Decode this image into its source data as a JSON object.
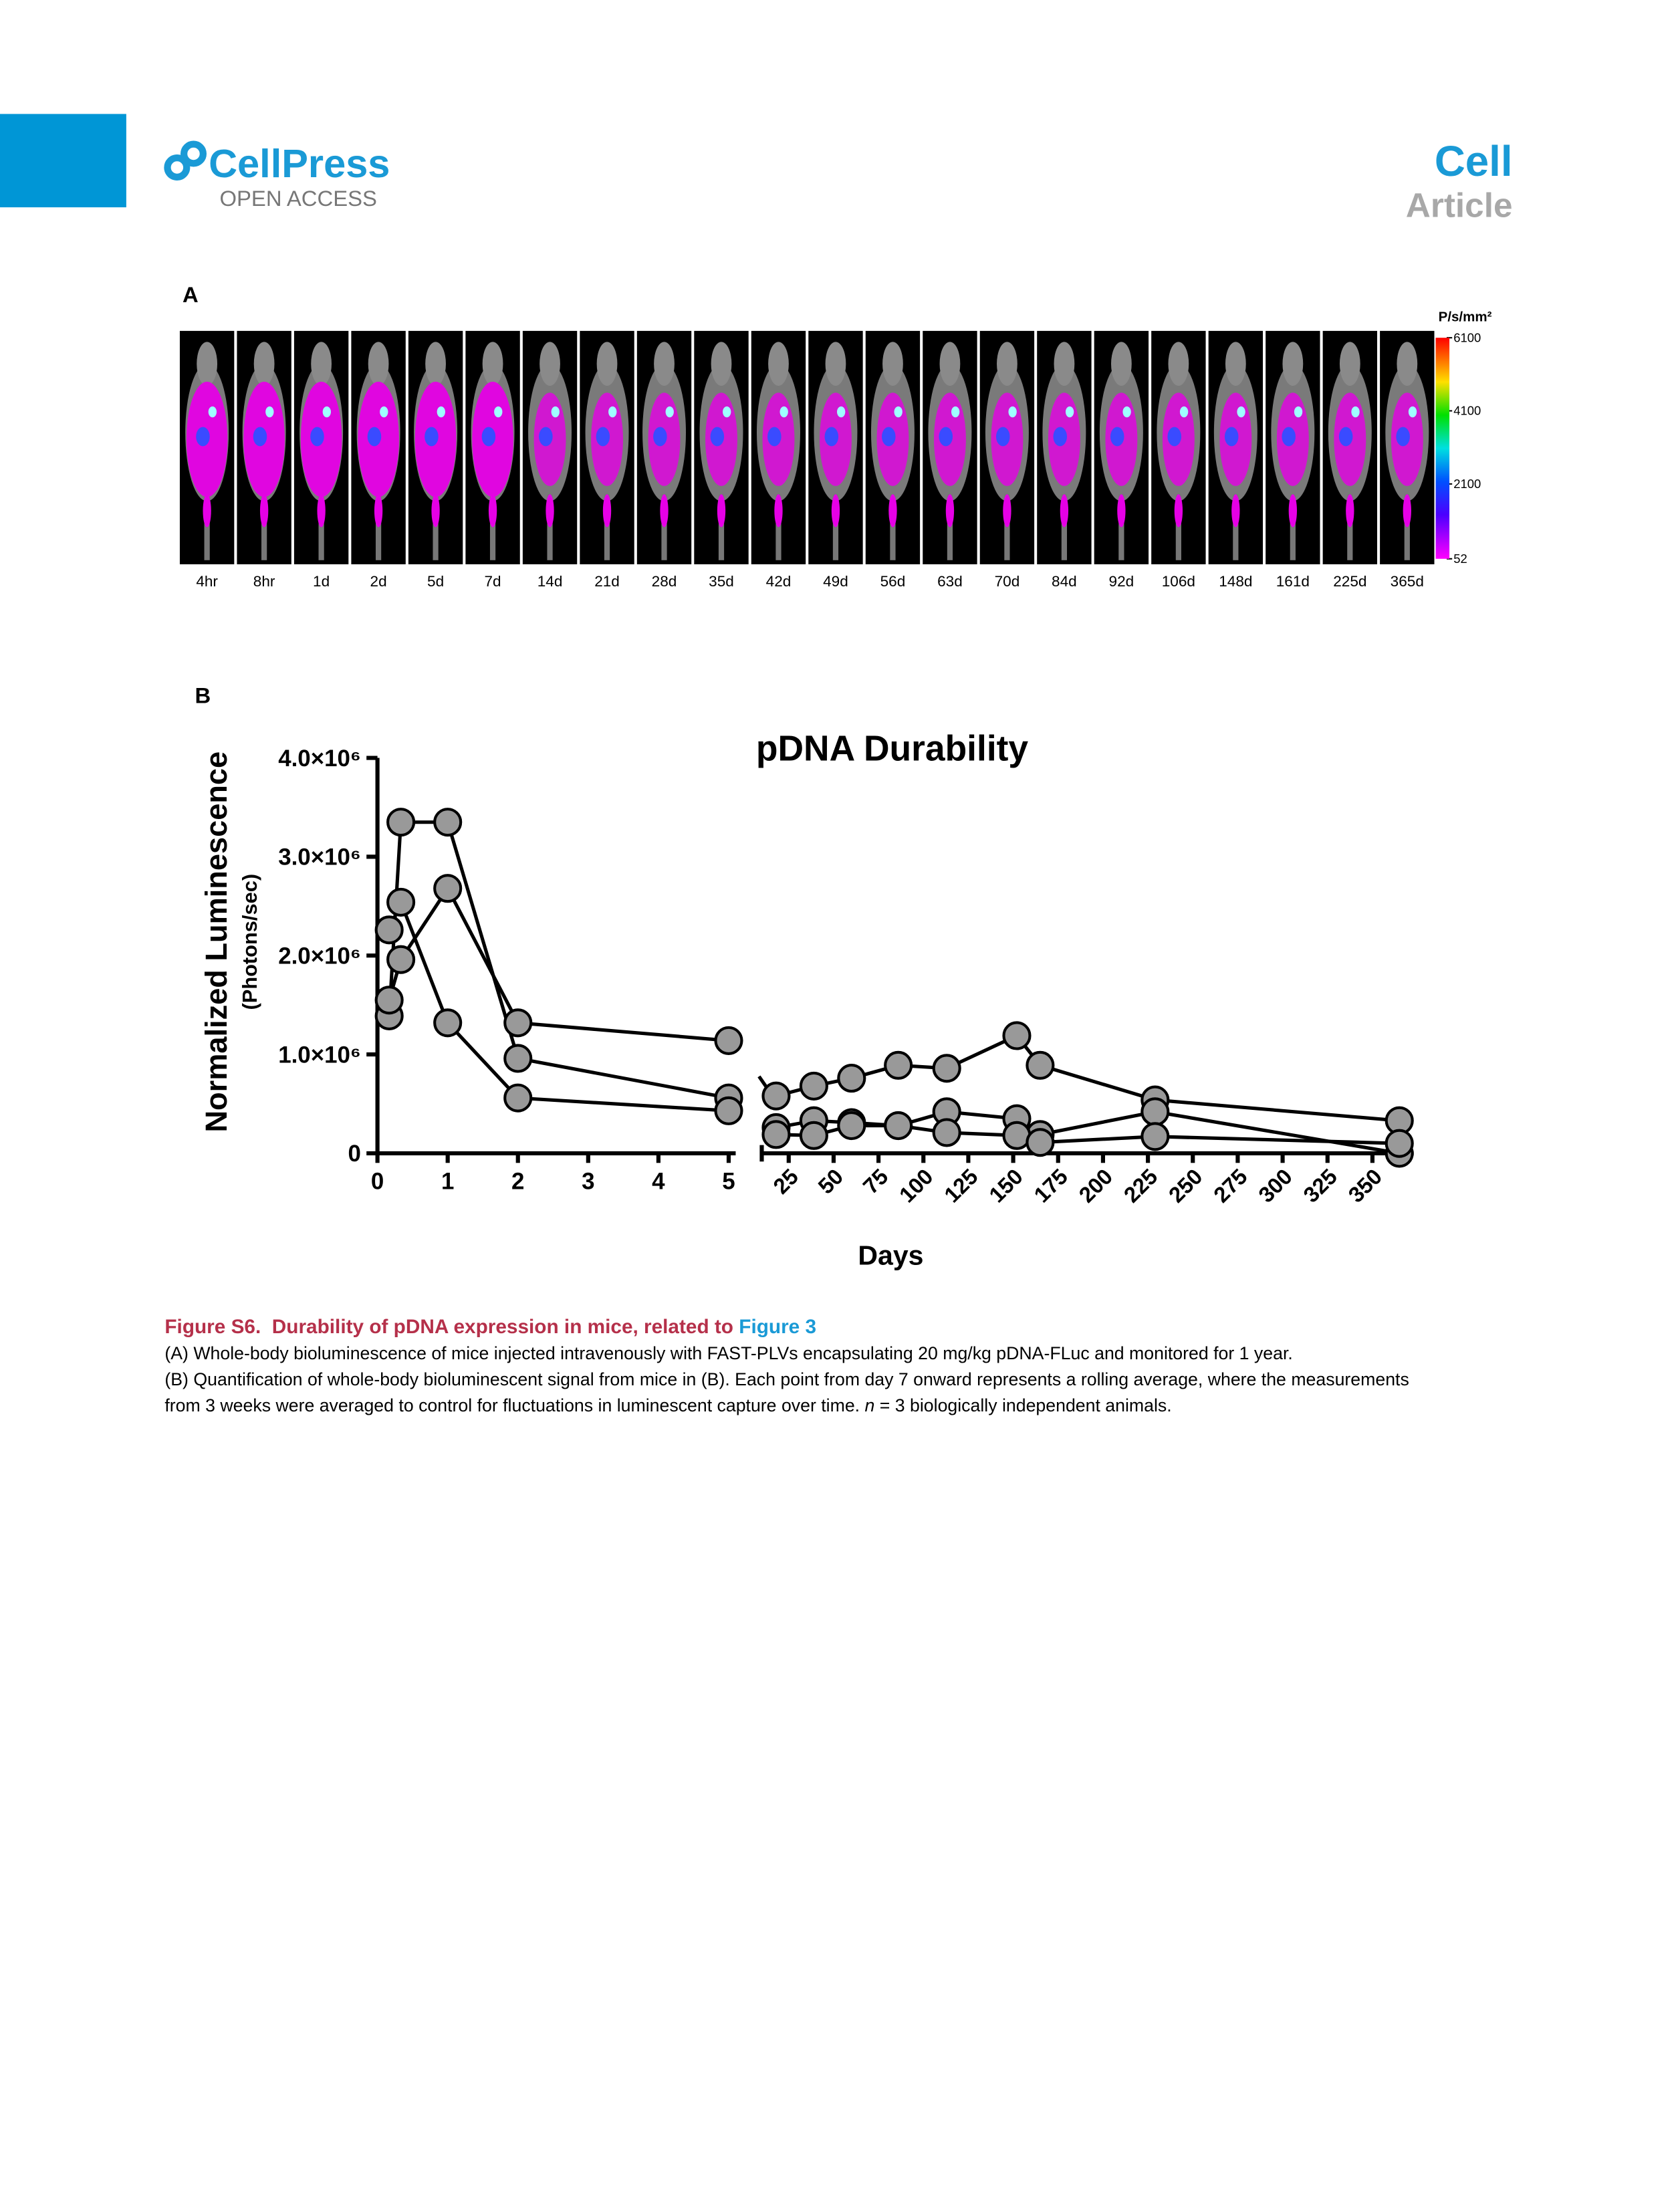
{
  "header": {
    "brand": "CellPress",
    "access": "OPEN ACCESS",
    "journal": "Cell",
    "article_type": "Article"
  },
  "panel_a": {
    "label": "A",
    "timepoints": [
      "4hr",
      "8hr",
      "1d",
      "2d",
      "5d",
      "7d",
      "14d",
      "21d",
      "28d",
      "35d",
      "42d",
      "49d",
      "56d",
      "63d",
      "70d",
      "84d",
      "92d",
      "106d",
      "148d",
      "161d",
      "225d",
      "365d"
    ],
    "colorbar": {
      "title": "P/s/mm²",
      "ticks": [
        6100,
        4100,
        2100,
        52
      ]
    }
  },
  "panel_b": {
    "label": "B"
  },
  "chart_data": {
    "type": "line",
    "title": "pDNA Durability",
    "y_label": "Normalized Luminescence",
    "y_sublabel": "(Photons/sec)",
    "x_label": "Days",
    "x": [
      0.167,
      0.333,
      1,
      2,
      5,
      18,
      39,
      60,
      86,
      113,
      152,
      165,
      229,
      365
    ],
    "series": [
      {
        "color": "#999999",
        "values": [
          1390000,
          3350000,
          3350000,
          960000,
          560000,
          580000,
          680000,
          760000,
          890000,
          860000,
          1190000,
          890000,
          540000,
          330000
        ]
      },
      {
        "color": "#999999",
        "values": [
          2260000,
          2540000,
          1320000,
          560000,
          430000,
          260000,
          330000,
          310000,
          280000,
          420000,
          350000,
          190000,
          420000,
          0
        ]
      },
      {
        "color": "#999999",
        "values": [
          1550000,
          1960000,
          2680000,
          1320000,
          1140000,
          190000,
          180000,
          280000,
          280000,
          210000,
          180000,
          110000,
          170000,
          100000
        ]
      }
    ],
    "xlim": [
      0,
      5.1
    ],
    "xticks": [
      0,
      1,
      2,
      3,
      4,
      5
    ],
    "x2lim": [
      10,
      373
    ],
    "x2ticks": [
      25,
      50,
      75,
      100,
      125,
      150,
      175,
      200,
      225,
      250,
      275,
      300,
      325,
      350
    ],
    "ylim": [
      0,
      4000000
    ],
    "yticks": [
      0,
      {
        "value": 1000000,
        "label": "1.0×10⁶"
      },
      {
        "value": 2000000,
        "label": "2.0×10⁶"
      },
      {
        "value": 3000000,
        "label": "3.0×10⁶"
      },
      {
        "value": 4000000,
        "label": "4.0×10⁶"
      }
    ]
  },
  "caption": {
    "title": "Figure S6.  Durability of pDNA expression in mice, related to ",
    "link": "Figure 3",
    "line_a": "(A) Whole-body bioluminescence of mice injected intravenously with FAST-PLVs encapsulating 20 mg/kg pDNA-FLuc and monitored for 1 year.",
    "line_b1": "(B) Quantification of whole-body bioluminescent signal from mice in (B). Each point from day 7 onward represents a rolling average, where the measurements",
    "line_b2": "from 3 weeks were averaged to control for fluctuations in luminescent capture over time. ",
    "line_b2_italic": "n",
    "line_b2_end": " = 3 biologically independent animals."
  }
}
